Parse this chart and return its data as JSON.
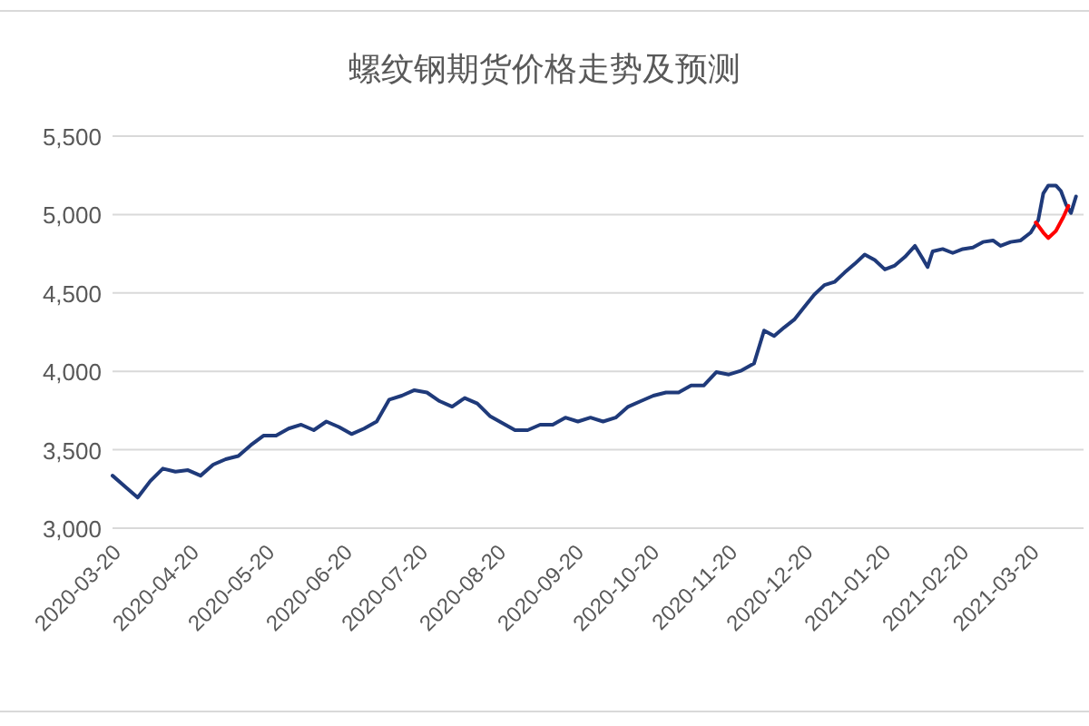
{
  "chart_data": {
    "type": "line",
    "title": "螺纹钢期货价格走势及预测",
    "series": [
      {
        "color": "#1f3a7a",
        "x": [
          "2020-03-19",
          "2020-03-24",
          "2020-03-29",
          "2020-04-03",
          "2020-04-08",
          "2020-04-13",
          "2020-04-18",
          "2020-04-23",
          "2020-04-28",
          "2020-05-03",
          "2020-05-08",
          "2020-05-13",
          "2020-05-18",
          "2020-05-23",
          "2020-05-28",
          "2020-06-02",
          "2020-06-07",
          "2020-06-12",
          "2020-06-17",
          "2020-06-22",
          "2020-06-27",
          "2020-07-02",
          "2020-07-07",
          "2020-07-12",
          "2020-07-17",
          "2020-07-22",
          "2020-07-27",
          "2020-08-01",
          "2020-08-06",
          "2020-08-11",
          "2020-08-16",
          "2020-08-21",
          "2020-08-26",
          "2020-08-31",
          "2020-09-05",
          "2020-09-10",
          "2020-09-15",
          "2020-09-20",
          "2020-09-25",
          "2020-09-30",
          "2020-10-05",
          "2020-10-10",
          "2020-10-15",
          "2020-10-20",
          "2020-10-25",
          "2020-10-30",
          "2020-11-04",
          "2020-11-09",
          "2020-11-14",
          "2020-11-19",
          "2020-11-24",
          "2020-11-29",
          "2020-12-03",
          "2020-12-07",
          "2020-12-11",
          "2020-12-15",
          "2020-12-19",
          "2020-12-23",
          "2020-12-27",
          "2020-12-31",
          "2021-01-04",
          "2021-01-08",
          "2021-01-12",
          "2021-01-16",
          "2021-01-20",
          "2021-01-24",
          "2021-01-28",
          "2021-02-01",
          "2021-02-04",
          "2021-02-06",
          "2021-02-08",
          "2021-02-12",
          "2021-02-16",
          "2021-02-20",
          "2021-02-24",
          "2021-02-28",
          "2021-03-04",
          "2021-03-07",
          "2021-03-11",
          "2021-03-15",
          "2021-03-19",
          "2021-03-22",
          "2021-03-24",
          "2021-03-26",
          "2021-03-29",
          "2021-03-31",
          "2021-04-02",
          "2021-04-04",
          "2021-04-06"
        ],
        "values": [
          3335,
          3265,
          3195,
          3300,
          3380,
          3360,
          3370,
          3335,
          3405,
          3440,
          3460,
          3530,
          3590,
          3590,
          3635,
          3660,
          3625,
          3680,
          3645,
          3600,
          3635,
          3680,
          3820,
          3845,
          3880,
          3865,
          3810,
          3775,
          3830,
          3795,
          3715,
          3670,
          3625,
          3625,
          3660,
          3660,
          3705,
          3680,
          3705,
          3680,
          3705,
          3775,
          3810,
          3845,
          3865,
          3865,
          3910,
          3910,
          3995,
          3980,
          4005,
          4050,
          4260,
          4225,
          4280,
          4330,
          4410,
          4490,
          4550,
          4570,
          4630,
          4685,
          4745,
          4710,
          4650,
          4675,
          4730,
          4800,
          4720,
          4665,
          4765,
          4780,
          4755,
          4780,
          4790,
          4825,
          4835,
          4800,
          4825,
          4835,
          4885,
          4965,
          5135,
          5185,
          5185,
          5150,
          5065,
          5010,
          5115
        ]
      },
      {
        "color": "#ff0000",
        "x": [
          "2021-03-21",
          "2021-03-24",
          "2021-03-26",
          "2021-03-29",
          "2021-04-01",
          "2021-04-03"
        ],
        "values": [
          4950,
          4885,
          4850,
          4895,
          4985,
          5055
        ]
      }
    ],
    "xlim": [
      "2020-03-19",
      "2021-04-09"
    ],
    "xticks": [
      "2020-03-20",
      "2020-04-20",
      "2020-05-20",
      "2020-06-20",
      "2020-07-20",
      "2020-08-20",
      "2020-09-20",
      "2020-10-20",
      "2020-11-20",
      "2020-12-20",
      "2021-01-20",
      "2021-02-20",
      "2021-03-20"
    ],
    "ylim": [
      3000,
      5500
    ],
    "yticks": [
      {
        "value": 3000,
        "label": "3,000"
      },
      {
        "value": 3500,
        "label": "3,500"
      },
      {
        "value": 4000,
        "label": "4,000"
      },
      {
        "value": 4500,
        "label": "4,500"
      },
      {
        "value": 5000,
        "label": "5,000"
      },
      {
        "value": 5500,
        "label": "5,500"
      }
    ],
    "grid": "y",
    "line_style": "solid",
    "marker": "none"
  }
}
